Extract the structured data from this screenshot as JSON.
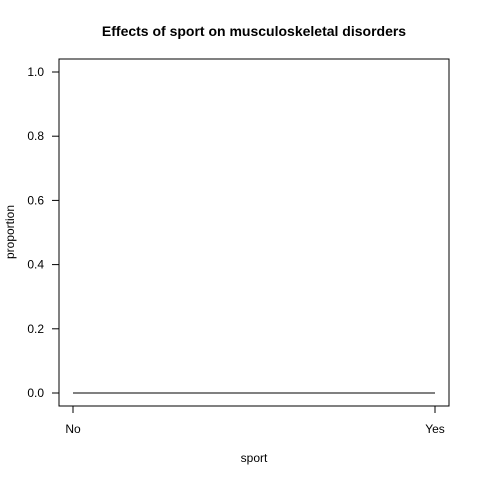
{
  "chart_data": {
    "type": "line",
    "title": "Effects of sport on musculoskeletal disorders",
    "xlabel": "sport",
    "ylabel": "proportion",
    "categories": [
      "No",
      "Yes"
    ],
    "series": [
      {
        "values": [
          0.0,
          0.0
        ]
      }
    ],
    "ylim": [
      0.0,
      1.0
    ],
    "yticks": [
      0.0,
      0.2,
      0.4,
      0.6,
      0.8,
      1.0
    ],
    "ytick_labels": [
      "0.0",
      "0.2",
      "0.4",
      "0.6",
      "0.8",
      "1.0"
    ],
    "grid": false,
    "legend": "none",
    "line_color": "#000000"
  }
}
